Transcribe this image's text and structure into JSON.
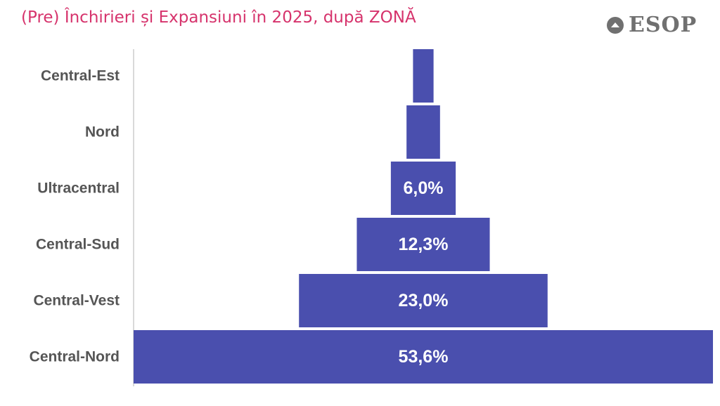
{
  "title": "(Pre) Închirieri și Expansiuni în 2025, după ZONĂ",
  "logo": {
    "text": "ESOP",
    "icon": "up-arrow-circle-icon"
  },
  "colors": {
    "bar": "#4a4fae",
    "title": "#d6336c",
    "label": "#555555",
    "value_label": "#ffffff",
    "axis": "#d9d9d9",
    "logo": "#707070"
  },
  "chart_data": {
    "type": "bar",
    "orientation": "horizontal",
    "style": "funnel-centered",
    "categories": [
      "Central-Est",
      "Nord",
      "Ultracentral",
      "Central-Sud",
      "Central-Vest",
      "Central-Nord"
    ],
    "values": [
      1.9,
      3.1,
      6.0,
      12.3,
      23.0,
      53.6
    ],
    "labels": [
      "",
      "",
      "6,0%",
      "12,3%",
      "23,0%",
      "53,6%"
    ],
    "unit": "%",
    "xlim": [
      0,
      53.6
    ],
    "grid": false,
    "legend": "none"
  }
}
